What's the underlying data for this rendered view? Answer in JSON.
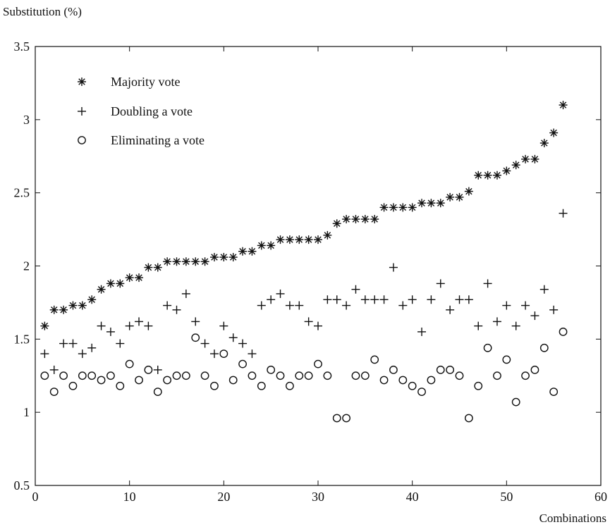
{
  "chart_data": {
    "type": "scatter",
    "title": "",
    "ylabel": "Substitution (%)",
    "xlabel": "Combinations",
    "xlim": [
      0,
      60
    ],
    "ylim": [
      0.5,
      3.5
    ],
    "xticks": [
      "0",
      "10",
      "20",
      "30",
      "40",
      "50",
      "60"
    ],
    "yticks": [
      "0.5",
      "1",
      "1.5",
      "2",
      "2.5",
      "3",
      "3.5"
    ],
    "grid": false,
    "legend_position": "top-left",
    "x": [
      1,
      2,
      3,
      4,
      5,
      6,
      7,
      8,
      9,
      10,
      11,
      12,
      13,
      14,
      15,
      16,
      17,
      18,
      19,
      20,
      21,
      22,
      23,
      24,
      25,
      26,
      27,
      28,
      29,
      30,
      31,
      32,
      33,
      34,
      35,
      36,
      37,
      38,
      39,
      40,
      41,
      42,
      43,
      44,
      45,
      46,
      47,
      48,
      49,
      50,
      51,
      52,
      53,
      54,
      55,
      56
    ],
    "series": [
      {
        "name": "Majority vote",
        "marker": "asterisk",
        "values": [
          1.59,
          1.7,
          1.7,
          1.73,
          1.73,
          1.77,
          1.84,
          1.88,
          1.88,
          1.92,
          1.92,
          1.99,
          1.99,
          2.03,
          2.03,
          2.03,
          2.03,
          2.03,
          2.06,
          2.06,
          2.06,
          2.1,
          2.1,
          2.14,
          2.14,
          2.18,
          2.18,
          2.18,
          2.18,
          2.18,
          2.21,
          2.29,
          2.32,
          2.32,
          2.32,
          2.32,
          2.4,
          2.4,
          2.4,
          2.4,
          2.43,
          2.43,
          2.43,
          2.47,
          2.47,
          2.51,
          2.62,
          2.62,
          2.62,
          2.65,
          2.69,
          2.73,
          2.73,
          2.84,
          2.91,
          3.1
        ]
      },
      {
        "name": "Doubling a vote",
        "marker": "plus",
        "values": [
          1.4,
          1.29,
          1.47,
          1.47,
          1.4,
          1.44,
          1.59,
          1.55,
          1.47,
          1.59,
          1.62,
          1.59,
          1.29,
          1.73,
          1.7,
          1.81,
          1.62,
          1.47,
          1.4,
          1.59,
          1.51,
          1.47,
          1.4,
          1.73,
          1.77,
          1.81,
          1.73,
          1.73,
          1.62,
          1.59,
          1.77,
          1.77,
          1.73,
          1.84,
          1.77,
          1.77,
          1.77,
          1.99,
          1.73,
          1.77,
          1.55,
          1.77,
          1.88,
          1.7,
          1.77,
          1.77,
          1.59,
          1.88,
          1.62,
          1.73,
          1.59,
          1.73,
          1.66,
          1.84,
          1.7,
          2.36
        ]
      },
      {
        "name": "Eliminating a vote",
        "marker": "circle",
        "values": [
          1.25,
          1.14,
          1.25,
          1.18,
          1.25,
          1.25,
          1.22,
          1.25,
          1.18,
          1.33,
          1.22,
          1.29,
          1.14,
          1.22,
          1.25,
          1.25,
          1.51,
          1.25,
          1.18,
          1.4,
          1.22,
          1.33,
          1.25,
          1.18,
          1.29,
          1.25,
          1.18,
          1.25,
          1.25,
          1.33,
          1.25,
          0.96,
          0.96,
          1.25,
          1.25,
          1.36,
          1.22,
          1.29,
          1.22,
          1.18,
          1.14,
          1.22,
          1.29,
          1.29,
          1.25,
          0.96,
          1.18,
          1.44,
          1.25,
          1.36,
          1.07,
          1.25,
          1.29,
          1.44,
          1.14,
          1.55
        ]
      }
    ]
  }
}
